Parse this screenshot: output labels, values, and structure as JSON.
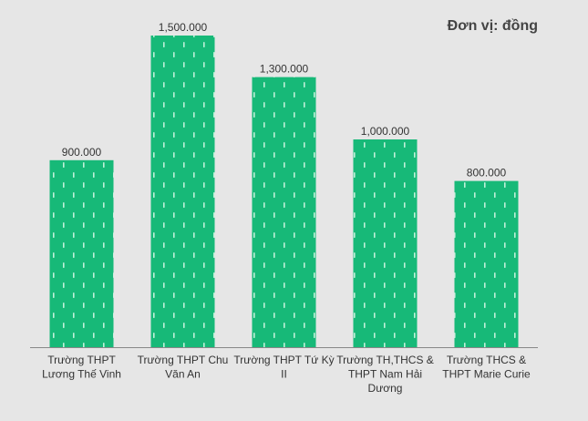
{
  "chart_data": {
    "type": "bar",
    "title": "",
    "unit_label": "Đơn vị: đồng",
    "categories": [
      [
        "Trường THPT",
        "Lương Thế Vinh"
      ],
      [
        "Trường THPT Chu",
        "Văn An"
      ],
      [
        "Trường THPT Tứ Kỳ",
        "II"
      ],
      [
        "Trường TH,THCS &",
        "THPT Nam Hải",
        "Dương"
      ],
      [
        "Trường THCS &",
        "THPT Marie Curie"
      ]
    ],
    "values": [
      900000,
      1500000,
      1300000,
      1000000,
      800000
    ],
    "value_labels": [
      "900.000",
      "1,500.000",
      "1,300.000",
      "1,000.000",
      "800.000"
    ],
    "xlabel": "",
    "ylabel": "",
    "ylim": [
      0,
      1500000
    ],
    "grid": false,
    "colors": {
      "bar": "#17b978",
      "dash": "#bff0d8",
      "axis": "#888888",
      "text": "#333333"
    }
  }
}
